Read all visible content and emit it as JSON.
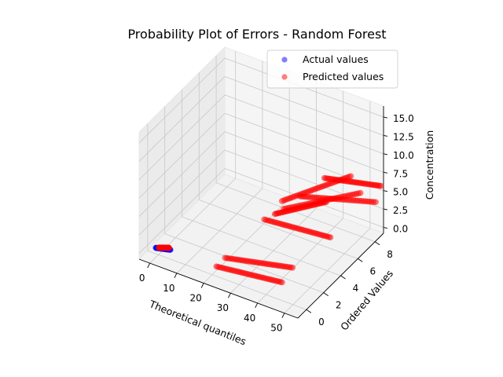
{
  "chart_data": {
    "type": "scatter",
    "projection": "3d",
    "title": "Probability Plot of Errors - Random Forest",
    "xlabel": "Theoretical quantiles",
    "ylabel": "Ordered Values",
    "zlabel": "Concentration",
    "xlim": [
      -4,
      55
    ],
    "ylim": [
      -1,
      9
    ],
    "zlim": [
      -0.8,
      16.5
    ],
    "xticks": [
      "0",
      "10",
      "20",
      "30",
      "40",
      "50"
    ],
    "yticks": [
      "0",
      "2",
      "4",
      "6",
      "8"
    ],
    "zticks": [
      "0.0",
      "2.5",
      "5.0",
      "7.5",
      "10.0",
      "12.5",
      "15.0"
    ],
    "grid": true,
    "legend_position": "top-right",
    "series": [
      {
        "name": "Actual values",
        "color": "#0000ff",
        "alpha": 0.5,
        "segments": [
          {
            "x": [
              -1.0,
              3.5
            ],
            "y": [
              0.0,
              0.3
            ],
            "z": [
              0.0,
              0.0
            ]
          }
        ]
      },
      {
        "name": "Predicted values",
        "color": "#ff0000",
        "alpha": 0.5,
        "segments": [
          {
            "x": [
              0.0,
              3.0
            ],
            "y": [
              0.05,
              0.3
            ],
            "z": [
              0.1,
              0.2
            ]
          },
          {
            "x": [
              22.5,
              45.0
            ],
            "y": [
              -0.3,
              0.3
            ],
            "z": [
              1.0,
              1.2
            ]
          },
          {
            "x": [
              23.5,
              46.0
            ],
            "y": [
              0.4,
              1.2
            ],
            "z": [
              1.5,
              2.3
            ]
          },
          {
            "x": [
              25.0,
              48.0
            ],
            "y": [
              4.5,
              5.0
            ],
            "z": [
              2.2,
              2.3
            ]
          },
          {
            "x": [
              31.0,
              54.0
            ],
            "y": [
              6.8,
              8.4
            ],
            "z": [
              3.5,
              4.0
            ]
          },
          {
            "x": [
              34.0,
              54.0
            ],
            "y": [
              8.7,
              9.0
            ],
            "z": [
              4.2,
              5.5
            ]
          },
          {
            "x": [
              30.0,
              48.0
            ],
            "y": [
              5.2,
              8.5
            ],
            "z": [
              3.5,
              4.3
            ]
          },
          {
            "x": [
              28.0,
              42.0
            ],
            "y": [
              4.8,
              6.4
            ],
            "z": [
              3.0,
              4.7
            ]
          },
          {
            "x": [
              30.0,
              46.0
            ],
            "y": [
              5.0,
              8.0
            ],
            "z": [
              4.8,
              6.9
            ]
          }
        ]
      }
    ]
  }
}
